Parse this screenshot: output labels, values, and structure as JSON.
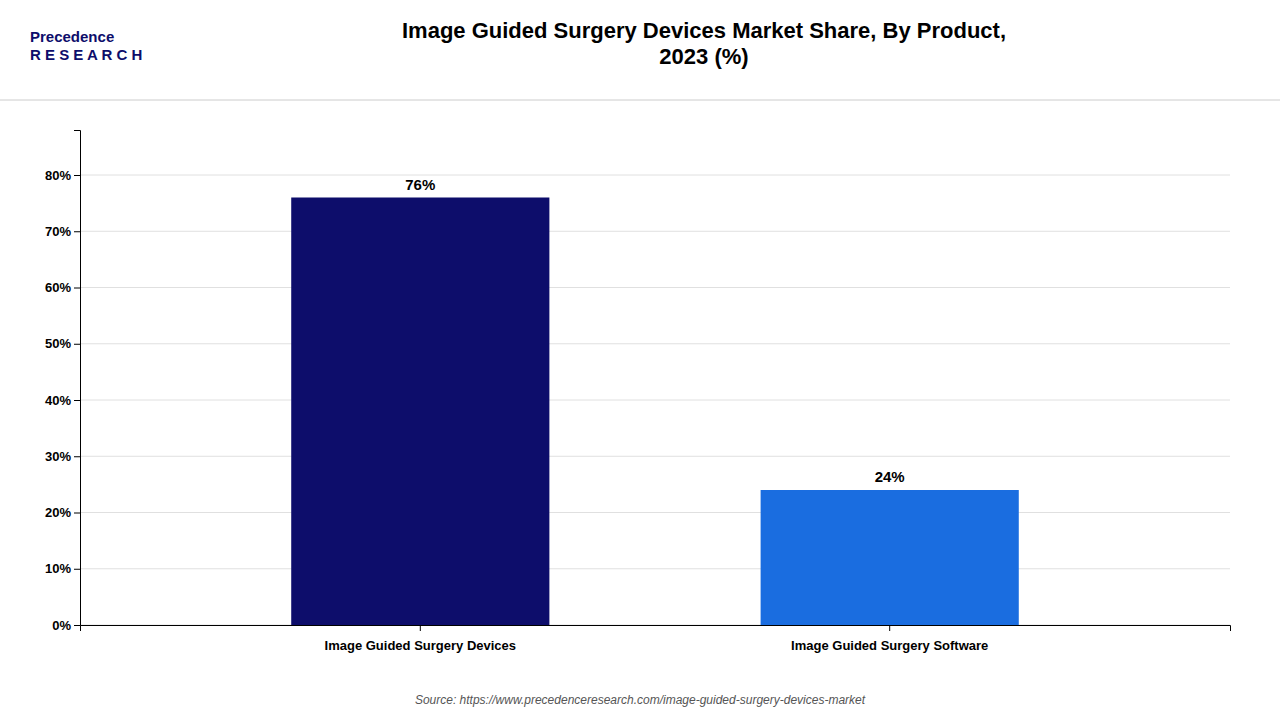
{
  "chart_data": {
    "type": "bar",
    "title": "Image Guided Surgery Devices Market Share, By Product,\n2023 (%)",
    "categories": [
      "Image Guided Surgery Devices",
      "Image Guided Surgery Software"
    ],
    "values": [
      76,
      24
    ],
    "value_labels": [
      "76%",
      "24%"
    ],
    "data_labels": true,
    "colors": [
      "#0d0d6b",
      "#1a6de0"
    ],
    "ylim": [
      0,
      88
    ],
    "yticks": [
      {
        "value": 0,
        "label": "0%"
      },
      {
        "value": 10,
        "label": "10%"
      },
      {
        "value": 20,
        "label": "20%"
      },
      {
        "value": 30,
        "label": "30%"
      },
      {
        "value": 40,
        "label": "40%"
      },
      {
        "value": 50,
        "label": "50%"
      },
      {
        "value": 60,
        "label": "60%"
      },
      {
        "value": 70,
        "label": "70%"
      },
      {
        "value": 80,
        "label": "80%"
      }
    ],
    "grid": true,
    "annotations": [
      "Precedence\nR E S E A R C H",
      "Source: https://www.precedenceresearch.com/image-guided-surgery-devices-market"
    ]
  }
}
